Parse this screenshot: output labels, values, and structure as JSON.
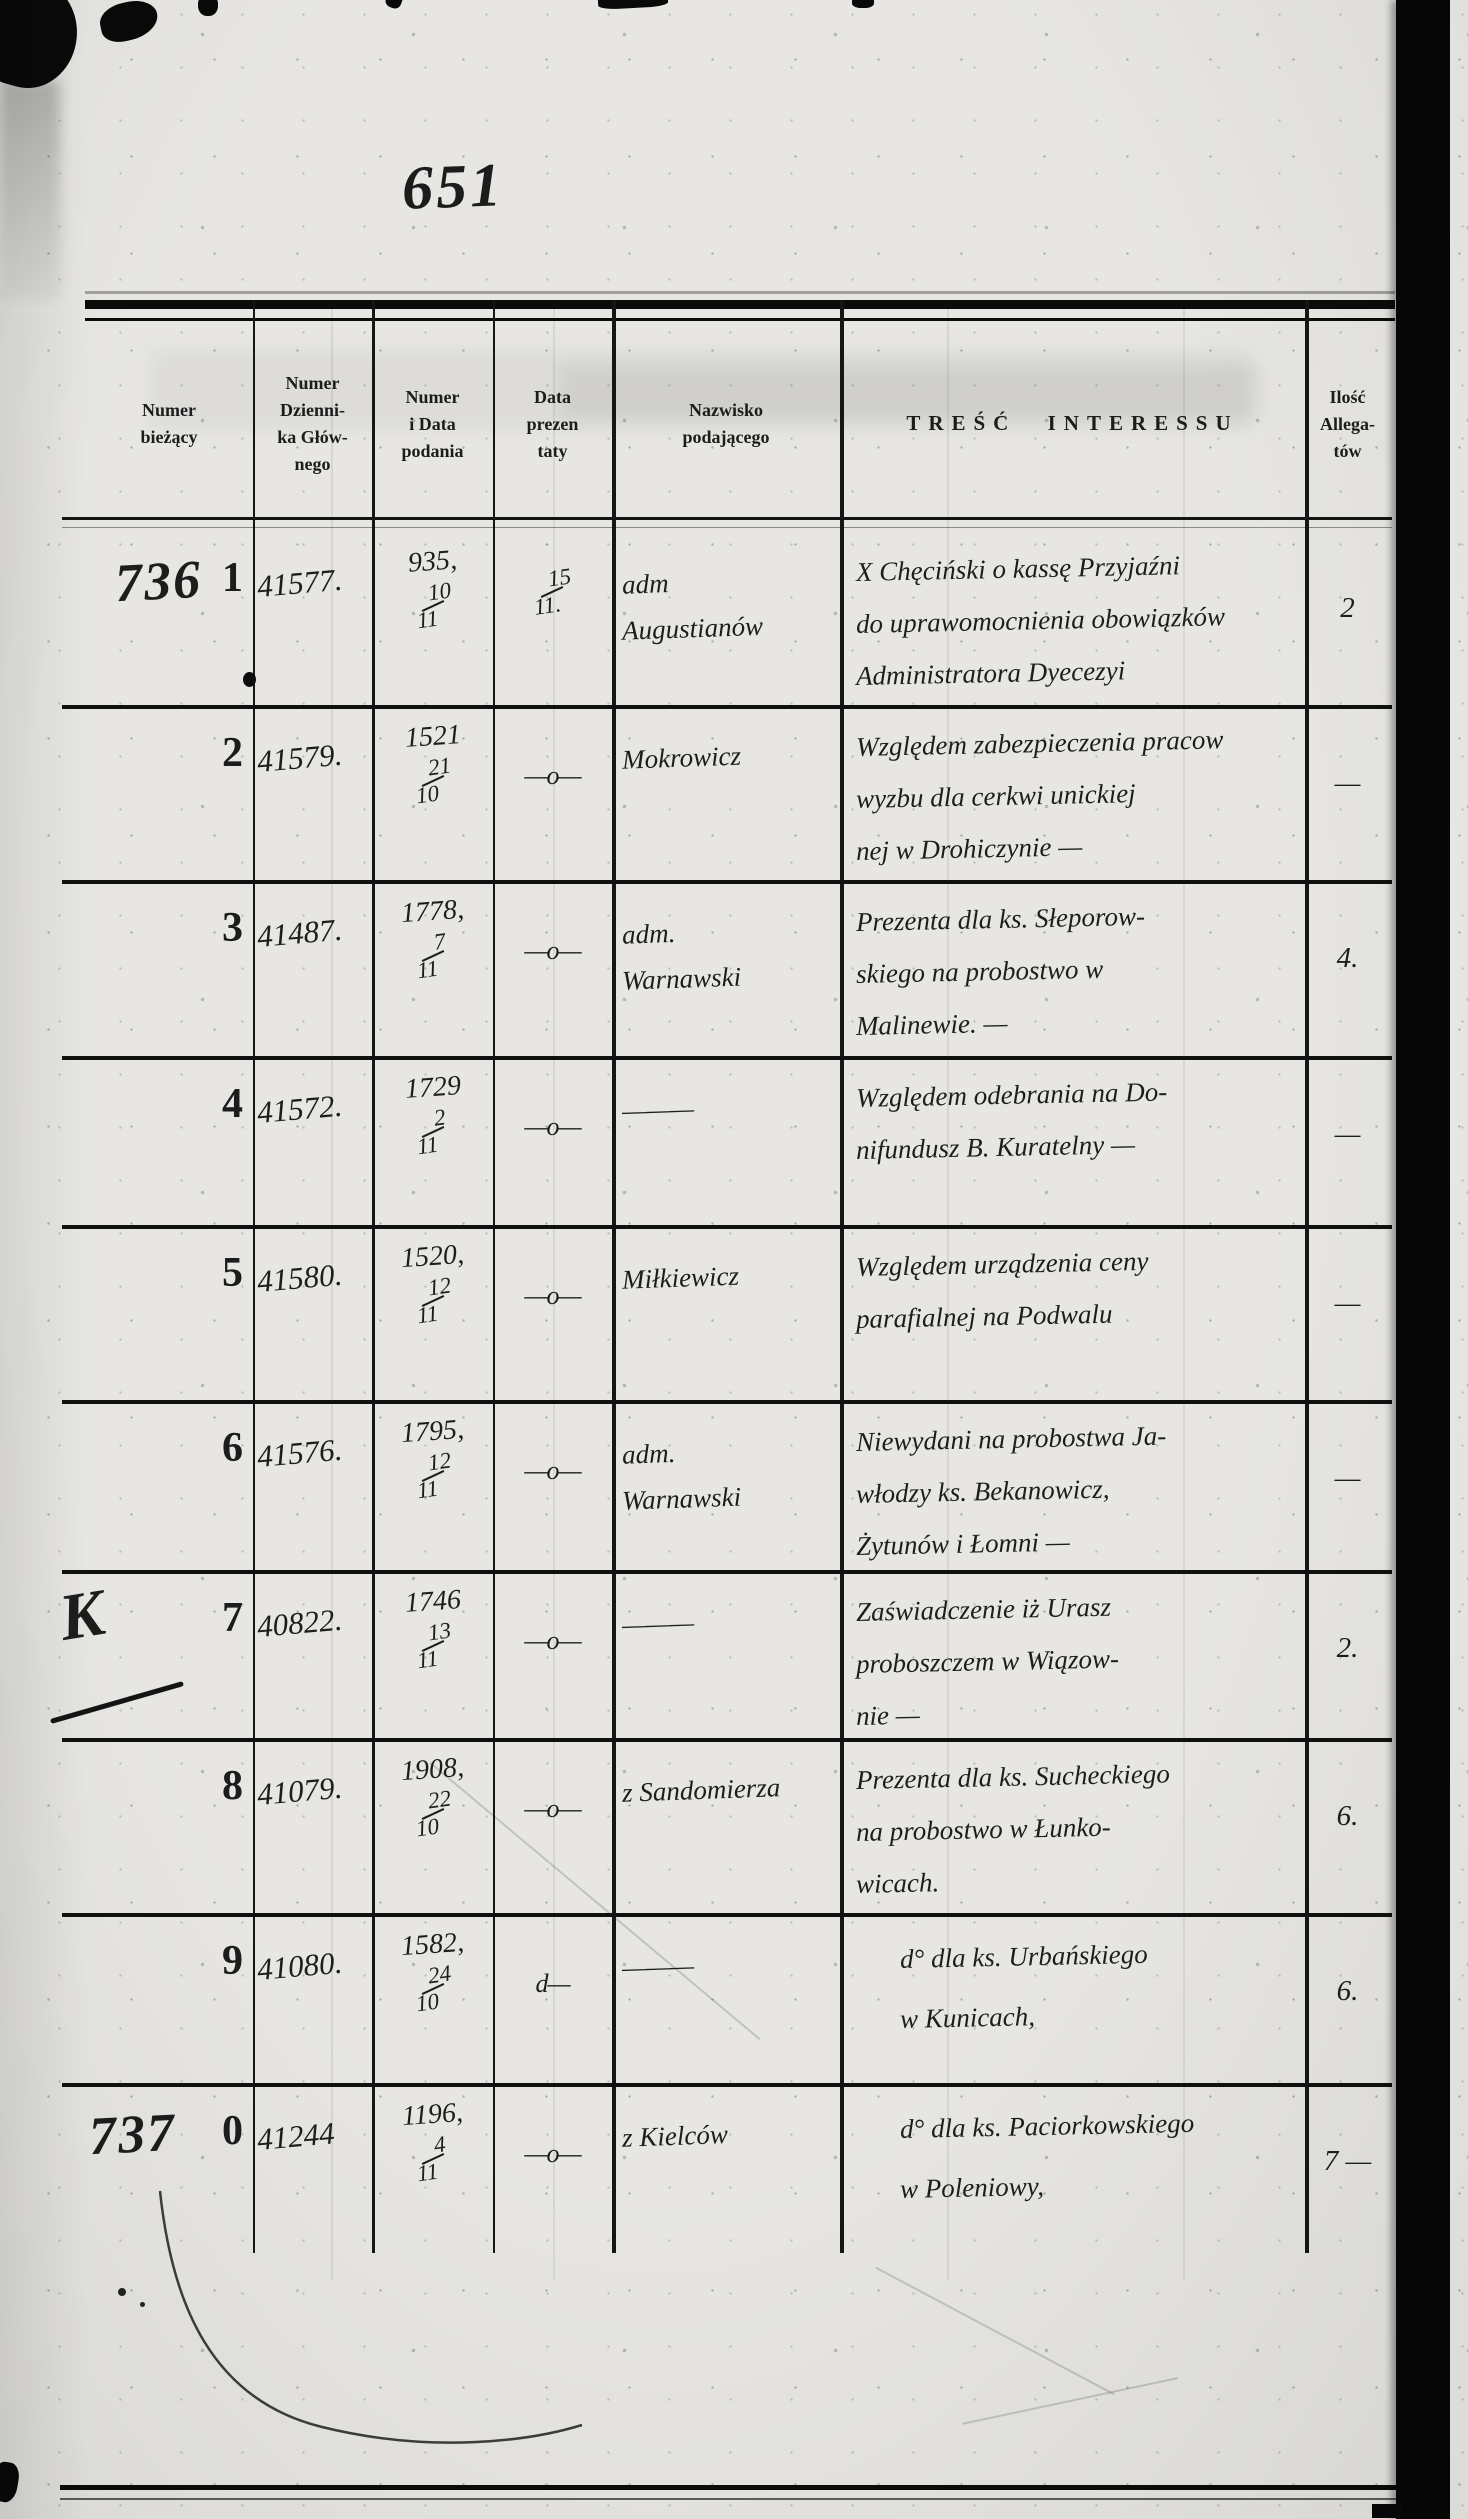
{
  "page": {
    "corner_number": "651",
    "margin_letter": "K",
    "paper_color": "#e7e6e2",
    "ink_color": "#1c1c1c",
    "scan_bar_color": "#060606"
  },
  "table": {
    "headers": [
      {
        "lines": [
          "Numer",
          "bieżący"
        ]
      },
      {
        "lines": [
          "Numer",
          "Dzienni-",
          "ka Głów-",
          "nego"
        ]
      },
      {
        "lines": [
          "Numer",
          "i Data",
          "podania"
        ]
      },
      {
        "lines": [
          "Data",
          "prezen",
          "taty"
        ]
      },
      {
        "lines": [
          "Nazwisko",
          "podającego"
        ]
      },
      {
        "lines": [
          "TREŚĆ INTERESSU"
        ]
      },
      {
        "lines": [
          "Ilość",
          "Allega-",
          "tów"
        ]
      }
    ],
    "rows": [
      {
        "nr_hand": "736",
        "nr_print": "1",
        "dziennik": "41577.",
        "podanie": {
          "num": "935,",
          "top": "10",
          "bottom": "11"
        },
        "prezentata": {
          "type": "frac",
          "top": "15",
          "bottom": "11."
        },
        "nazwisko": [
          "adm",
          "Augustianów"
        ],
        "tresc": [
          "X Chęciński o kassę Przyjaźni",
          "do uprawomocnienia obowiązków",
          "Administratora Dyecezyi"
        ],
        "ilosc": "2"
      },
      {
        "nr_print": "2",
        "dziennik": "41579.",
        "podanie": {
          "num": "1521",
          "top": "21",
          "bottom": "10"
        },
        "prezentata": {
          "type": "mark",
          "text": "—o—"
        },
        "nazwisko": [
          "Mokrowicz"
        ],
        "tresc": [
          "Względem zabezpieczenia pracow",
          "wyzbu dla cerkwi unickiej",
          "nej w Drohiczynie —"
        ],
        "ilosc": "—"
      },
      {
        "nr_print": "3",
        "dziennik": "41487.",
        "podanie": {
          "num": "1778,",
          "top": "7",
          "bottom": "11"
        },
        "prezentata": {
          "type": "mark",
          "text": "—o—"
        },
        "nazwisko": [
          "adm.",
          "Warnawski"
        ],
        "tresc": [
          "Prezenta dla ks. Słeporow-",
          "skiego na probostwo w",
          "Malinewie. —"
        ],
        "ilosc": "4."
      },
      {
        "nr_print": "4",
        "dziennik": "41572.",
        "podanie": {
          "num": "1729",
          "top": "2",
          "bottom": "11"
        },
        "prezentata": {
          "type": "mark",
          "text": "—o—"
        },
        "nazwisko": [
          "———"
        ],
        "tresc": [
          "Względem odebrania na Do-",
          "nifundusz B. Kuratelny —"
        ],
        "ilosc": "—"
      },
      {
        "nr_print": "5",
        "dziennik": "41580.",
        "podanie": {
          "num": "1520,",
          "top": "12",
          "bottom": "11"
        },
        "prezentata": {
          "type": "mark",
          "text": "—o—"
        },
        "nazwisko": [
          "Miłkiewicz"
        ],
        "tresc": [
          "Względem urządzenia ceny",
          "parafialnej na Podwalu"
        ],
        "ilosc": "—"
      },
      {
        "nr_print": "6",
        "dziennik": "41576.",
        "podanie": {
          "num": "1795,",
          "top": "12",
          "bottom": "11"
        },
        "prezentata": {
          "type": "mark",
          "text": "—o—"
        },
        "nazwisko": [
          "adm.",
          "Warnawski"
        ],
        "tresc": [
          "Niewydani na probostwa Ja-",
          "włodzy ks. Bekanowicz,",
          "Żytunów i Łomni —"
        ],
        "ilosc": "—"
      },
      {
        "nr_print": "7",
        "dziennik": "40822.",
        "podanie": {
          "num": "1746",
          "top": "13",
          "bottom": "11"
        },
        "prezentata": {
          "type": "mark",
          "text": "—o—"
        },
        "nazwisko": [
          "———"
        ],
        "tresc": [
          "Zaświadczenie iż Urasz",
          "proboszczem w Wiązow-",
          "nie —"
        ],
        "ilosc": "2."
      },
      {
        "nr_print": "8",
        "dziennik": "41079.",
        "podanie": {
          "num": "1908,",
          "top": "22",
          "bottom": "10"
        },
        "prezentata": {
          "type": "mark",
          "text": "—o—"
        },
        "nazwisko": [
          "z Sandomierza"
        ],
        "tresc": [
          "Prezenta dla ks. Sucheckiego",
          "na probostwo w Łunko-",
          "wicach."
        ],
        "ilosc": "6."
      },
      {
        "nr_print": "9",
        "dziennik": "41080.",
        "podanie": {
          "num": "1582,",
          "top": "24",
          "bottom": "10"
        },
        "prezentata": {
          "type": "mark",
          "text": "d—"
        },
        "nazwisko": [
          "———"
        ],
        "tresc": [
          "d° dla ks. Urbańskiego",
          "w Kunicach,"
        ],
        "ilosc": "6."
      },
      {
        "nr_hand": "737",
        "nr_print": "0",
        "dziennik": "41244",
        "podanie": {
          "num": "1196,",
          "top": "4",
          "bottom": "11"
        },
        "prezentata": {
          "type": "mark",
          "text": "—o—"
        },
        "nazwisko": [
          "z Kielców"
        ],
        "tresc": [
          "d° dla ks. Paciorkowskiego",
          "w Poleniowy,"
        ],
        "ilosc": "7 —"
      }
    ]
  }
}
